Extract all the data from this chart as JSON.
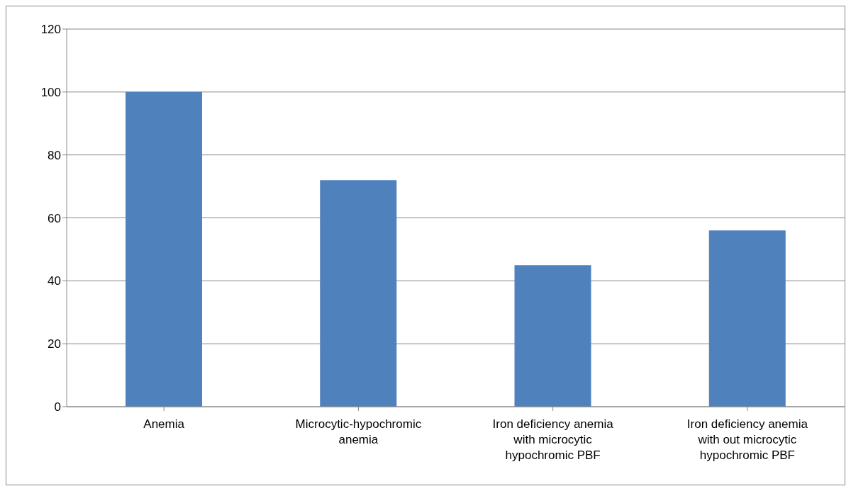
{
  "chart_data": {
    "type": "bar",
    "categories": [
      "Anemia",
      "Microcytic-hypochromic anemia",
      "Iron deficiency anemia with microcytic hypochromic PBF",
      "Iron deficiency anemia with out microcytic hypochromic PBF"
    ],
    "values": [
      100,
      72,
      45,
      56
    ],
    "color": "#4f81bd",
    "ylim": [
      0,
      120
    ],
    "yticks": [
      0,
      20,
      40,
      60,
      80,
      100,
      120
    ],
    "grid": "y"
  }
}
